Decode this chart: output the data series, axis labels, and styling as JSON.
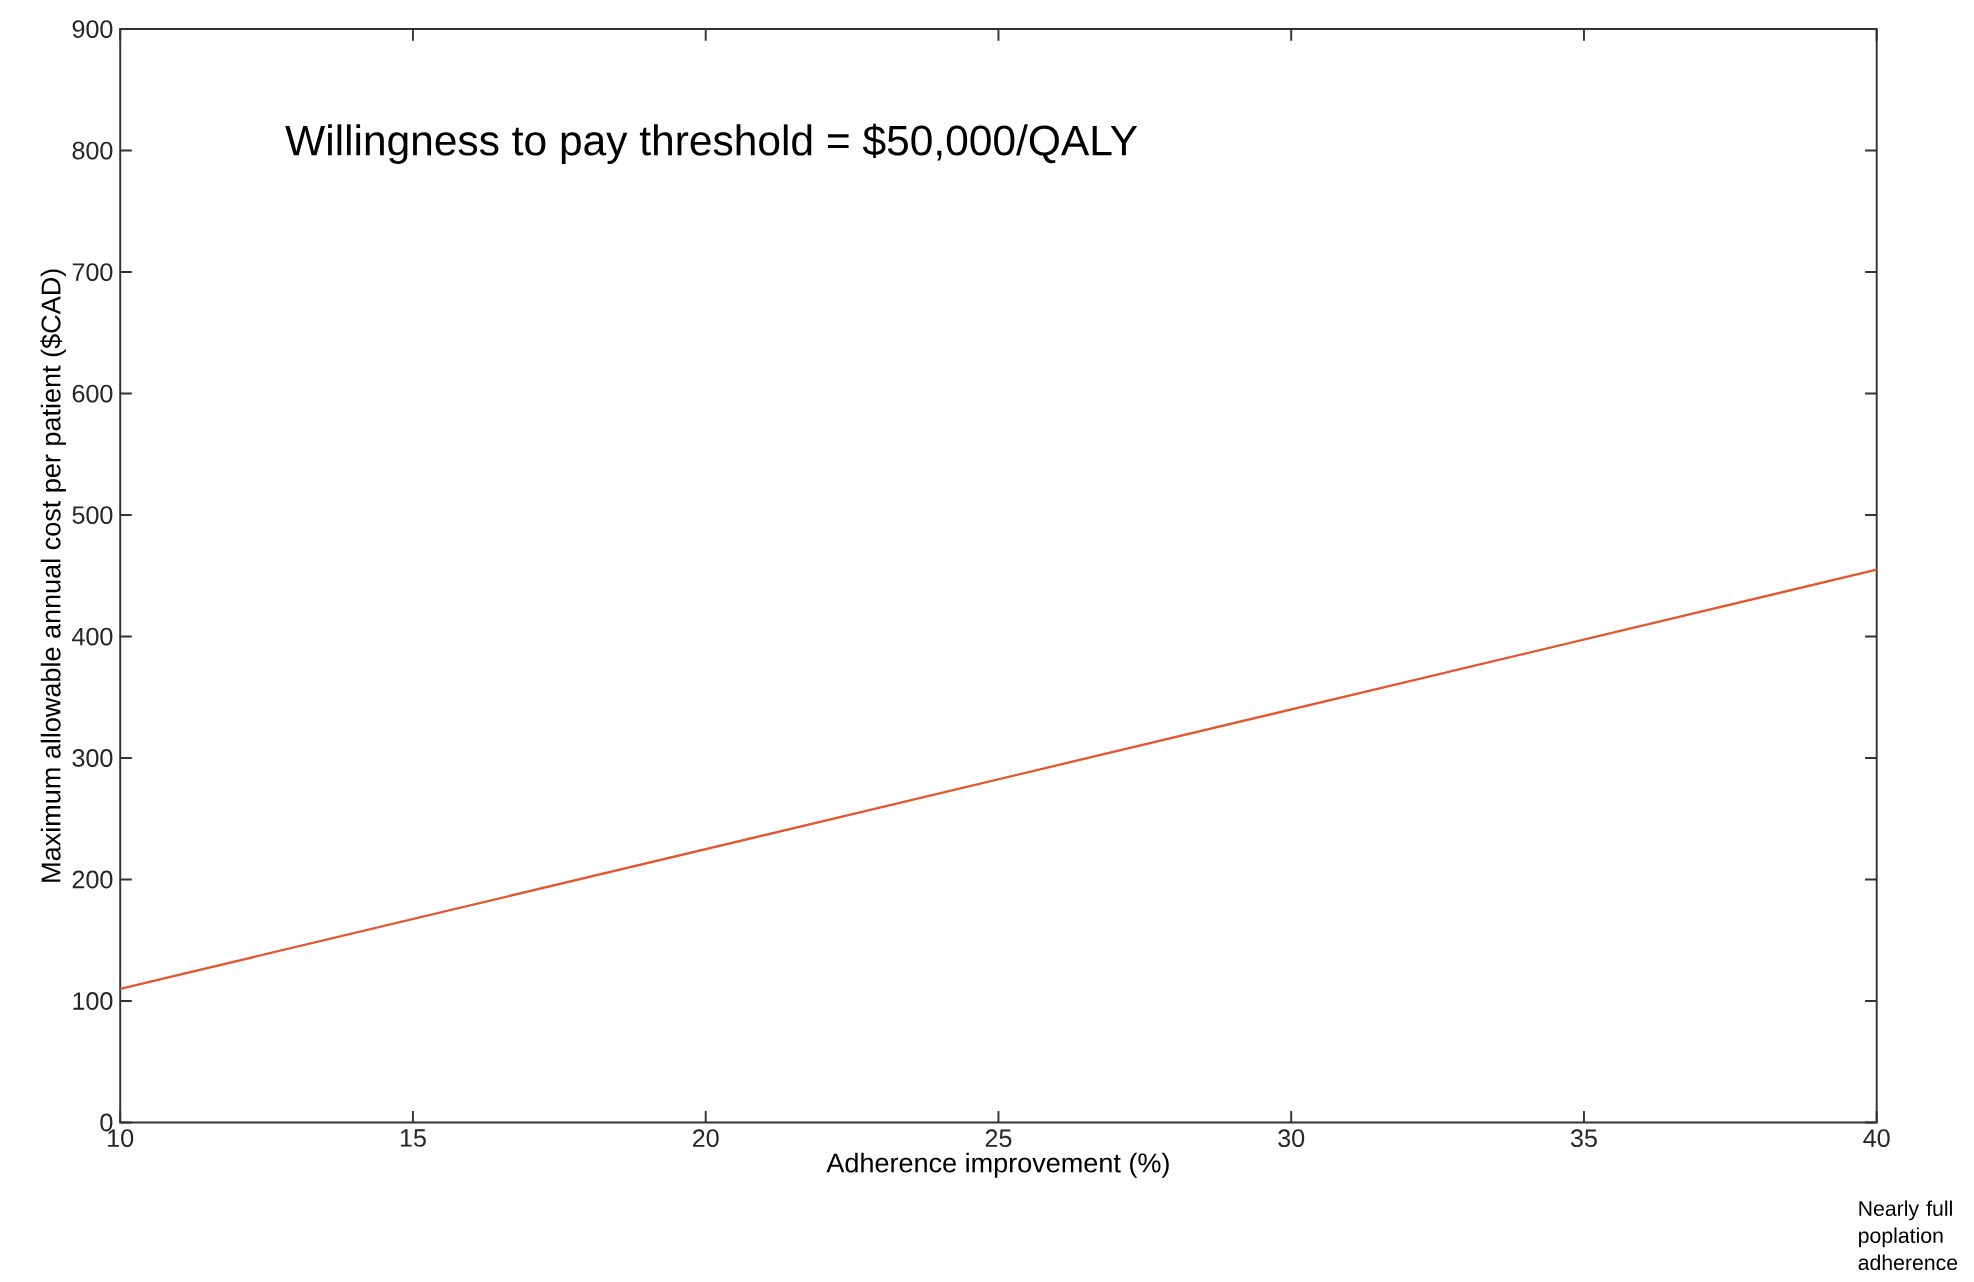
{
  "chart_data": {
    "type": "line",
    "title": "Willingness to pay threshold = $50,000/QALY",
    "xlabel": "Adherence improvement (%)",
    "ylabel": "Maximum allowable annual cost per patient ($CAD)",
    "annotations": [
      "Nearly full poplation adherence"
    ],
    "x": [
      10,
      40
    ],
    "series": [
      {
        "color": "#e4572e",
        "values": [
          110,
          455
        ]
      }
    ],
    "xlim": [
      10,
      40
    ],
    "xticks": [
      10,
      15,
      20,
      25,
      30,
      35,
      40
    ],
    "ylim": [
      0,
      900
    ],
    "yticks": [
      0,
      100,
      200,
      300,
      400,
      500,
      600,
      700,
      800,
      900
    ],
    "grid": false,
    "marker": "none",
    "line_style": "solid"
  }
}
